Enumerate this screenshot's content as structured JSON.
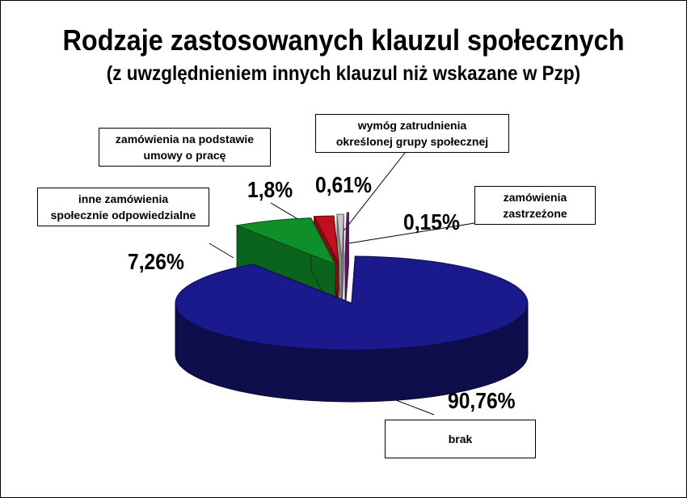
{
  "chart_data": {
    "type": "pie",
    "title": "Rodzaje zastosowanych klauzul społecznych",
    "subtitle": "(z uwzględnieniem innych klauzul niż wskazane w Pzp)",
    "slices": [
      {
        "label": "brak",
        "value": 90.76,
        "value_label": "90,76%",
        "color": "#1a1a8c"
      },
      {
        "label": "inne zamówienia społecznie odpowiedzialne",
        "label_lines": [
          "inne zamówienia",
          "społecznie odpowiedzialne"
        ],
        "value": 7.26,
        "value_label": "7,26%",
        "color": "#0f8f2a"
      },
      {
        "label": "zamówienia na podstawie umowy o pracę",
        "label_lines": [
          "zamówienia na podstawie",
          "umowy o pracę"
        ],
        "value": 1.8,
        "value_label": "1,8%",
        "color": "#c0101e"
      },
      {
        "label": "wymóg zatrudnienia określonej grupy społecznej",
        "label_lines": [
          "wymóg zatrudnienia",
          "określonej grupy społecznej"
        ],
        "value": 0.61,
        "value_label": "0,61%",
        "color": "#c8c8c8"
      },
      {
        "label": "zamówienia zastrzeżone",
        "label_lines": [
          "zamówienia",
          "zastrzeżone"
        ],
        "value": 0.15,
        "value_label": "0,15%",
        "color": "#8a1a9a"
      }
    ]
  }
}
